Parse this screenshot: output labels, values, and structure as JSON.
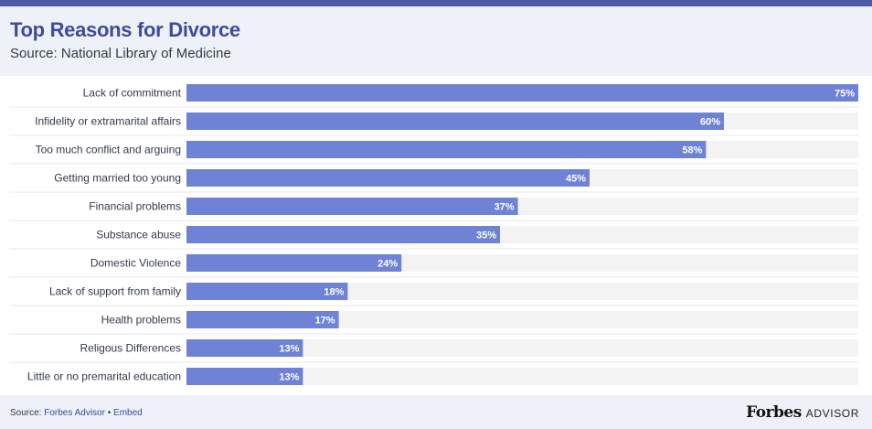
{
  "title": "Top Reasons for Divorce",
  "subtitle": "Source: National Library of Medicine",
  "footer": {
    "source_prefix": "Source:",
    "source_link": "Forbes Advisor",
    "separator": "•",
    "embed_link": "Embed",
    "brand_name": "Forbes",
    "brand_suffix": "ADVISOR"
  },
  "colors": {
    "bar": "#6e82d6",
    "track": "#f3f3f3",
    "title": "#3c4b9e",
    "header_bg": "#eef1f7",
    "top_stripe": "#4d5ba8"
  },
  "chart_data": {
    "type": "bar",
    "orientation": "horizontal",
    "xlim": [
      0,
      75
    ],
    "categories": [
      "Lack of commitment",
      "Infidelity or extramarital affairs",
      "Too much conflict and arguing",
      "Getting married too young",
      "Financial problems",
      "Substance abuse",
      "Domestic Violence",
      "Lack of support from family",
      "Health problems",
      "Religous Differences",
      "Little or no premarital education"
    ],
    "values": [
      75,
      60,
      58,
      45,
      37,
      35,
      24,
      18,
      17,
      13,
      13
    ],
    "value_labels": [
      "75%",
      "60%",
      "58%",
      "45%",
      "37%",
      "35%",
      "24%",
      "18%",
      "17%",
      "13%",
      "13%"
    ]
  }
}
